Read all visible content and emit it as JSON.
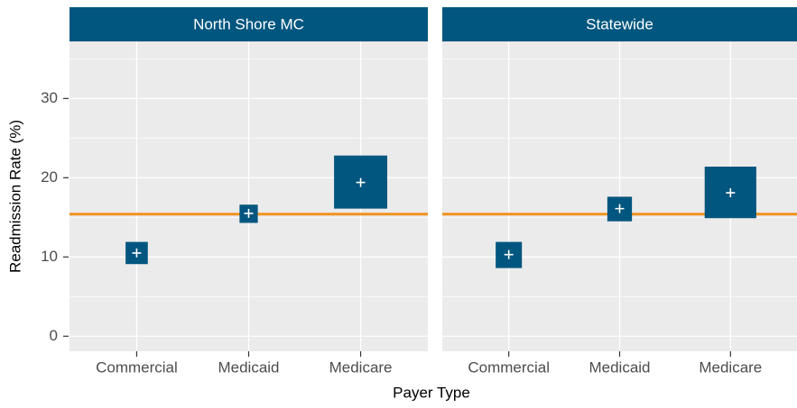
{
  "chart_data": {
    "type": "crossbar",
    "ylabel": "Readmission Rate (%)",
    "xlabel": "Payer Type",
    "categories": [
      "Commercial",
      "Medicaid",
      "Medicare"
    ],
    "ylim": [
      -1.9,
      37.2
    ],
    "yticks": [
      0,
      10,
      20,
      30
    ],
    "minor_yticks": [
      5,
      15,
      25,
      35
    ],
    "grid": true,
    "color": "#00567f",
    "reference_line": 15.4,
    "reference_color": "#f0921e",
    "panels": [
      {
        "title": "North Shore MC",
        "values": [
          10.5,
          15.5,
          19.4
        ],
        "lower": [
          9.1,
          14.3,
          16.1
        ],
        "upper": [
          11.9,
          16.6,
          22.8
        ]
      },
      {
        "title": "Statewide",
        "values": [
          10.3,
          16.1,
          18.1
        ],
        "lower": [
          8.6,
          14.5,
          14.9
        ],
        "upper": [
          11.9,
          17.6,
          21.4
        ]
      }
    ]
  }
}
